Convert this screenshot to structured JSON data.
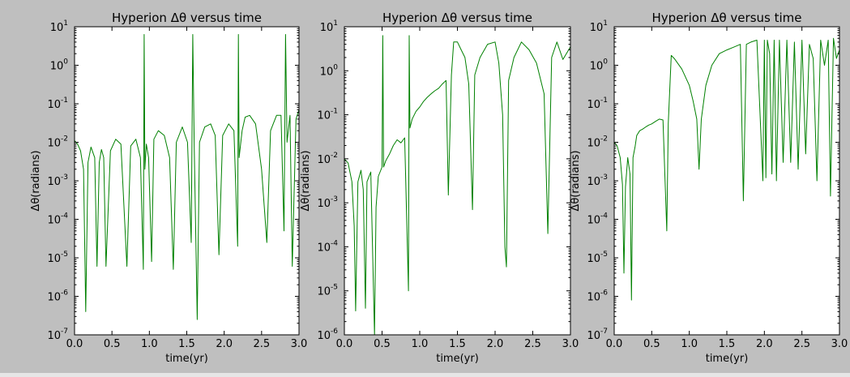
{
  "figure": {
    "background": "#bfbfbf",
    "line_color": "#008000"
  },
  "chart_data": [
    {
      "type": "line",
      "title": "Hyperion Δθ versus time",
      "xlabel": "time(yr)",
      "ylabel": "Δθ(radians)",
      "xlim": [
        0.0,
        3.0
      ],
      "ylim": [
        1e-07,
        10
      ],
      "yscale": "log",
      "grid": false,
      "xticks": [
        "0.0",
        "0.5",
        "1.0",
        "1.5",
        "2.0",
        "2.5",
        "3.0"
      ],
      "yticks": [
        {
          "base": "10",
          "exp": "-7"
        },
        {
          "base": "10",
          "exp": "-6"
        },
        {
          "base": "10",
          "exp": "-5"
        },
        {
          "base": "10",
          "exp": "-4"
        },
        {
          "base": "10",
          "exp": "-3"
        },
        {
          "base": "10",
          "exp": "-2"
        },
        {
          "base": "10",
          "exp": "-1"
        },
        {
          "base": "10",
          "exp": "0"
        },
        {
          "base": "10",
          "exp": "1"
        }
      ],
      "series": [
        {
          "x": [
            0.0,
            0.04,
            0.08,
            0.12,
            0.15,
            0.18,
            0.22,
            0.27,
            0.3,
            0.33,
            0.36,
            0.39,
            0.42,
            0.48,
            0.55,
            0.62,
            0.7,
            0.75,
            0.82,
            0.88,
            0.92,
            0.93,
            0.94,
            0.96,
            0.99,
            1.03,
            1.06,
            1.12,
            1.2,
            1.27,
            1.32,
            1.36,
            1.44,
            1.51,
            1.56,
            1.58,
            1.6,
            1.64,
            1.67,
            1.74,
            1.82,
            1.88,
            1.93,
            1.98,
            2.06,
            2.13,
            2.18,
            2.19,
            2.2,
            2.24,
            2.28,
            2.34,
            2.42,
            2.5,
            2.57,
            2.62,
            2.7,
            2.76,
            2.8,
            2.82,
            2.84,
            2.88,
            2.91,
            2.96,
            3.0
          ],
          "y": [
            0.011,
            0.009,
            0.006,
            0.002,
            4e-07,
            0.003,
            0.0075,
            0.004,
            6e-06,
            0.003,
            0.0065,
            0.004,
            6e-06,
            0.006,
            0.012,
            0.009,
            6e-06,
            0.008,
            0.012,
            0.004,
            5e-06,
            6.3,
            0.002,
            0.009,
            0.004,
            8e-06,
            0.012,
            0.02,
            0.015,
            0.004,
            5e-06,
            0.01,
            0.025,
            0.01,
            2.5e-05,
            6.3,
            0.008,
            2.5e-07,
            0.01,
            0.025,
            0.03,
            0.015,
            1.2e-05,
            0.015,
            0.03,
            0.02,
            2e-05,
            6.3,
            0.004,
            0.02,
            0.045,
            0.05,
            0.03,
            0.002,
            2.5e-05,
            0.02,
            0.05,
            0.05,
            5e-05,
            6.3,
            0.01,
            0.05,
            6e-06,
            0.04,
            0.07
          ]
        }
      ]
    },
    {
      "type": "line",
      "title": "Hyperion Δθ versus time",
      "xlabel": "time(yr)",
      "ylabel": "Δθ(radians)",
      "xlim": [
        0.0,
        3.0
      ],
      "ylim": [
        1e-06,
        10
      ],
      "yscale": "log",
      "grid": false,
      "xticks": [
        "0.0",
        "0.5",
        "1.0",
        "1.5",
        "2.0",
        "2.5",
        "3.0"
      ],
      "yticks": [
        {
          "base": "10",
          "exp": "-6"
        },
        {
          "base": "10",
          "exp": "-5"
        },
        {
          "base": "10",
          "exp": "-4"
        },
        {
          "base": "10",
          "exp": "-3"
        },
        {
          "base": "10",
          "exp": "-2"
        },
        {
          "base": "10",
          "exp": "-1"
        },
        {
          "base": "10",
          "exp": "0"
        },
        {
          "base": "10",
          "exp": "1"
        }
      ],
      "series": [
        {
          "x": [
            0.0,
            0.05,
            0.1,
            0.13,
            0.15,
            0.18,
            0.22,
            0.25,
            0.28,
            0.3,
            0.35,
            0.4,
            0.42,
            0.45,
            0.5,
            0.51,
            0.52,
            0.55,
            0.6,
            0.65,
            0.7,
            0.75,
            0.8,
            0.85,
            0.86,
            0.87,
            0.9,
            0.95,
            1.0,
            1.05,
            1.1,
            1.15,
            1.2,
            1.25,
            1.3,
            1.35,
            1.38,
            1.42,
            1.45,
            1.5,
            1.55,
            1.6,
            1.65,
            1.7,
            1.73,
            1.8,
            1.9,
            2.0,
            2.05,
            2.1,
            2.13,
            2.15,
            2.18,
            2.25,
            2.35,
            2.45,
            2.55,
            2.65,
            2.7,
            2.75,
            2.82,
            2.9,
            3.0
          ],
          "y": [
            0.01,
            0.008,
            0.003,
            0.0003,
            3.5e-06,
            0.003,
            0.0055,
            0.002,
            4e-06,
            0.003,
            0.005,
            1e-06,
            0.0008,
            0.004,
            0.0065,
            6.3,
            0.0065,
            0.009,
            0.013,
            0.02,
            0.027,
            0.023,
            0.03,
            1e-05,
            6.3,
            0.05,
            0.08,
            0.12,
            0.15,
            0.2,
            0.25,
            0.3,
            0.35,
            0.4,
            0.5,
            0.6,
            0.0015,
            0.8,
            4.5,
            4.5,
            3.0,
            2.0,
            0.5,
            0.0007,
            0.8,
            2.0,
            4.0,
            4.5,
            1.5,
            0.1,
            0.0001,
            3.5e-05,
            0.6,
            2.0,
            4.5,
            3.0,
            1.5,
            0.3,
            0.0002,
            2.0,
            4.5,
            1.8,
            3.5
          ]
        }
      ]
    },
    {
      "type": "line",
      "title": "Hyperion Δθ versus time",
      "xlabel": "time(yr)",
      "ylabel": "Δθ(radians)",
      "xlim": [
        0.0,
        3.0
      ],
      "ylim": [
        1e-07,
        10
      ],
      "yscale": "log",
      "grid": false,
      "xticks": [
        "0.0",
        "0.5",
        "1.0",
        "1.5",
        "2.0",
        "2.5",
        "3.0"
      ],
      "yticks": [
        {
          "base": "10",
          "exp": "-7"
        },
        {
          "base": "10",
          "exp": "-6"
        },
        {
          "base": "10",
          "exp": "-5"
        },
        {
          "base": "10",
          "exp": "-4"
        },
        {
          "base": "10",
          "exp": "-3"
        },
        {
          "base": "10",
          "exp": "-2"
        },
        {
          "base": "10",
          "exp": "-1"
        },
        {
          "base": "10",
          "exp": "0"
        },
        {
          "base": "10",
          "exp": "1"
        }
      ],
      "series": [
        {
          "x": [
            0.0,
            0.04,
            0.08,
            0.11,
            0.13,
            0.15,
            0.18,
            0.21,
            0.23,
            0.25,
            0.28,
            0.3,
            0.34,
            0.38,
            0.42,
            0.46,
            0.5,
            0.55,
            0.6,
            0.65,
            0.7,
            0.72,
            0.76,
            0.8,
            0.9,
            1.0,
            1.05,
            1.1,
            1.13,
            1.16,
            1.22,
            1.3,
            1.4,
            1.5,
            1.6,
            1.68,
            1.72,
            1.76,
            1.82,
            1.9,
            1.98,
            2.0,
            2.02,
            2.04,
            2.07,
            2.1,
            2.13,
            2.16,
            2.2,
            2.25,
            2.3,
            2.35,
            2.4,
            2.45,
            2.5,
            2.55,
            2.6,
            2.65,
            2.7,
            2.75,
            2.8,
            2.85,
            2.88,
            2.92,
            2.96,
            3.0
          ],
          "y": [
            0.01,
            0.008,
            0.004,
            0.0008,
            4e-06,
            0.0007,
            0.004,
            0.0015,
            8e-07,
            0.004,
            0.008,
            0.015,
            0.02,
            0.022,
            0.025,
            0.028,
            0.03,
            0.035,
            0.04,
            0.038,
            5e-05,
            0.03,
            1.8,
            1.5,
            0.8,
            0.3,
            0.12,
            0.04,
            0.002,
            0.04,
            0.3,
            1.0,
            2.0,
            2.5,
            3.0,
            3.5,
            0.0003,
            3.5,
            4.0,
            4.5,
            0.001,
            4.5,
            0.0012,
            4.5,
            2.0,
            0.0015,
            4.5,
            0.001,
            4.5,
            0.003,
            4.5,
            0.003,
            4.0,
            0.002,
            4.5,
            0.005,
            3.5,
            1.5,
            0.001,
            4.5,
            1.0,
            4.5,
            0.0004,
            5.0,
            1.5,
            2.5
          ]
        }
      ]
    }
  ]
}
